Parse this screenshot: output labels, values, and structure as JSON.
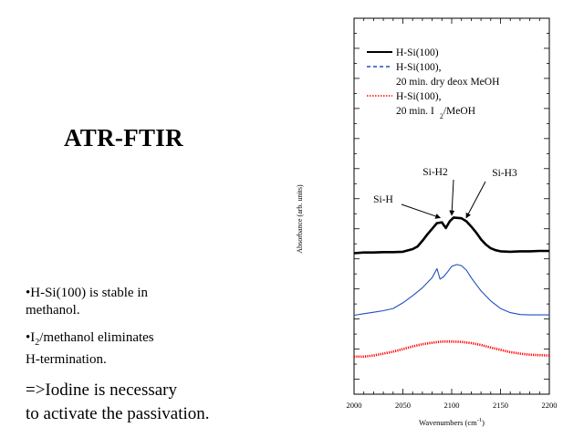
{
  "slide": {
    "title": "ATR-FTIR",
    "bullets": [
      {
        "pre": "•H-Si(100) is stable in",
        "post": "methanol."
      },
      {
        "lead": "•I",
        "sub": "2",
        "rest": "/methanol eliminates",
        "post": "H-termination."
      }
    ],
    "conclusion": [
      "=>Iodine is necessary",
      "to activate the passivation."
    ]
  },
  "chart_data": {
    "type": "line",
    "xlabel": "Wavenumbers (cm",
    "xlabel_sup": "-1",
    "xlabel_close": ")",
    "ylabel": "Absorbance (arb. units)",
    "xlim": [
      2000,
      2200
    ],
    "ylim": [
      0,
      1
    ],
    "x_ticks": [
      "2000",
      "2050",
      "2100",
      "2150",
      "2200"
    ],
    "grid": false,
    "legend_position": "top-left",
    "series": [
      {
        "name": "H-Si(100)",
        "color": "#000000",
        "style": "solid",
        "width": 2.6,
        "x": [
          2000,
          2010,
          2020,
          2030,
          2040,
          2050,
          2060,
          2065,
          2070,
          2075,
          2080,
          2085,
          2090,
          2094,
          2098,
          2102,
          2106,
          2110,
          2115,
          2120,
          2125,
          2130,
          2135,
          2140,
          2145,
          2150,
          2160,
          2170,
          2180,
          2190,
          2200
        ],
        "y": [
          0.375,
          0.377,
          0.377,
          0.378,
          0.378,
          0.379,
          0.386,
          0.393,
          0.408,
          0.425,
          0.44,
          0.455,
          0.457,
          0.442,
          0.46,
          0.47,
          0.469,
          0.468,
          0.46,
          0.446,
          0.43,
          0.412,
          0.398,
          0.388,
          0.383,
          0.38,
          0.379,
          0.38,
          0.38,
          0.381,
          0.381
        ]
      },
      {
        "name": "H-Si(100),",
        "name2": "20 min. dry deox MeOH",
        "color": "#1f4fbf",
        "style": "dashed",
        "width": 1.1,
        "x": [
          2000,
          2010,
          2020,
          2030,
          2040,
          2050,
          2060,
          2070,
          2080,
          2085,
          2088,
          2092,
          2096,
          2100,
          2105,
          2110,
          2115,
          2120,
          2125,
          2130,
          2140,
          2150,
          2160,
          2170,
          2180,
          2190,
          2200
        ],
        "y": [
          0.21,
          0.214,
          0.218,
          0.222,
          0.228,
          0.243,
          0.262,
          0.283,
          0.31,
          0.334,
          0.306,
          0.313,
          0.326,
          0.34,
          0.345,
          0.342,
          0.33,
          0.31,
          0.292,
          0.275,
          0.248,
          0.228,
          0.217,
          0.212,
          0.211,
          0.211,
          0.211
        ]
      },
      {
        "name": "H-Si(100),",
        "name2": "20 min. I",
        "name2_sub": "2",
        "name2_post": "/MeOH",
        "color": "#ff0000",
        "style": "dotted",
        "width": 2.6,
        "x": [
          2000,
          2010,
          2020,
          2030,
          2040,
          2050,
          2060,
          2070,
          2080,
          2090,
          2100,
          2110,
          2120,
          2130,
          2140,
          2150,
          2160,
          2170,
          2180,
          2190,
          2200
        ],
        "y": [
          0.1,
          0.1,
          0.103,
          0.108,
          0.113,
          0.12,
          0.127,
          0.133,
          0.137,
          0.14,
          0.14,
          0.139,
          0.136,
          0.131,
          0.124,
          0.118,
          0.112,
          0.108,
          0.105,
          0.104,
          0.103
        ]
      }
    ],
    "annotations": [
      {
        "text": "Si-H",
        "target_x": 2088,
        "target_y": 0.455
      },
      {
        "text": "Si-H2",
        "target_x": 2100,
        "target_y": 0.462
      },
      {
        "text": "Si-H3",
        "target_x": 2115,
        "target_y": 0.455
      }
    ]
  }
}
